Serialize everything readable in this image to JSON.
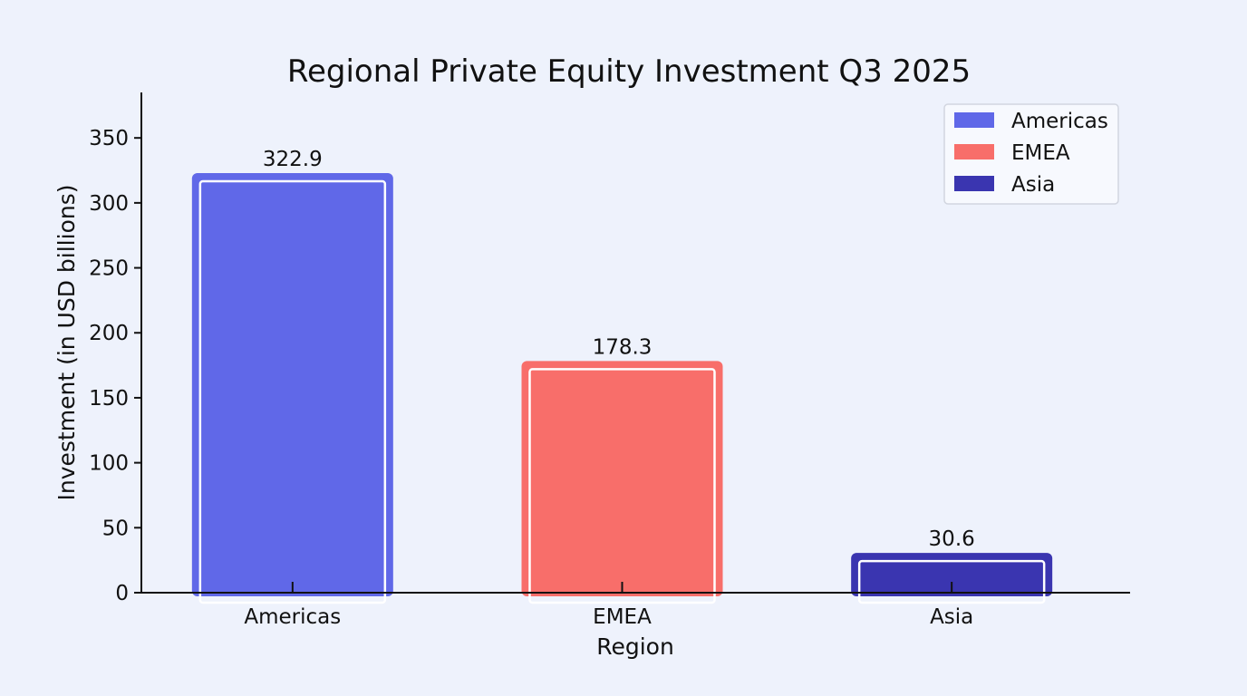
{
  "chart_data": {
    "type": "bar",
    "title": "Regional Private Equity Investment Q3 2025",
    "xlabel": "Region",
    "ylabel": "Investment (in USD billions)",
    "categories": [
      "Americas",
      "EMEA",
      "Asia"
    ],
    "values": [
      322.9,
      178.3,
      30.6
    ],
    "value_labels": [
      "322.9",
      "178.3",
      "30.6"
    ],
    "colors": [
      "#6068E8",
      "#F86E6A",
      "#3A35B0"
    ],
    "ylim": [
      0,
      385
    ],
    "yticks": [
      0,
      50,
      100,
      150,
      200,
      250,
      300,
      350
    ],
    "grid": false,
    "legend": {
      "position": "top-right",
      "entries": [
        "Americas",
        "EMEA",
        "Asia"
      ]
    }
  }
}
